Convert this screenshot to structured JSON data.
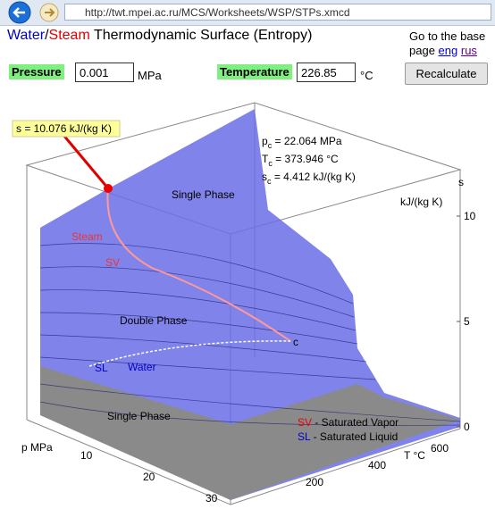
{
  "browser": {
    "url": "http://twt.mpei.ac.ru/MCS/Worksheets/WSP/STPs.xmcd"
  },
  "header": {
    "title_water": "Water",
    "title_slash": "/",
    "title_steam": "Steam",
    "title_rest": " Thermodynamic Surface (Entropy)",
    "base_link_text": "Go to the base page",
    "link_eng": "eng",
    "link_rus": "rus"
  },
  "form": {
    "pressure_label": "Pressure",
    "pressure_value": "0.001",
    "pressure_unit": "MPa",
    "temperature_label": "Temperature",
    "temperature_value": "226.85",
    "temperature_unit": "°C",
    "button": "Recalculate"
  },
  "plot": {
    "callout": "s = 10.076 kJ/(kg K)",
    "critical": [
      {
        "symbol": "p",
        "sub": "c",
        "text": " = 22.064 MPa"
      },
      {
        "symbol": "T",
        "sub": "c",
        "text": " = 373.946 °C"
      },
      {
        "symbol": "s",
        "sub": "c",
        "text": " = 4.412 kJ/(kg K)"
      }
    ],
    "labels": {
      "single_phase_top": "Single Phase",
      "steam": "Steam",
      "sv": "SV",
      "double_phase": "Double Phase",
      "sl": "SL",
      "water": "Water",
      "c": "c",
      "single_phase_bottom": "Single Phase"
    },
    "legend": [
      {
        "key": "SV",
        "text": " - Saturated Vapor"
      },
      {
        "key": "SL",
        "text": " - Saturated Liquid"
      }
    ],
    "s_axis": {
      "label": "s",
      "unit": "kJ/(kg K)",
      "ticks": [
        0,
        5,
        10
      ]
    },
    "p_axis": {
      "label": "p MPa",
      "ticks": [
        10,
        20,
        30
      ]
    },
    "t_axis": {
      "label": "T °C",
      "ticks": [
        200,
        400,
        600
      ]
    }
  }
}
